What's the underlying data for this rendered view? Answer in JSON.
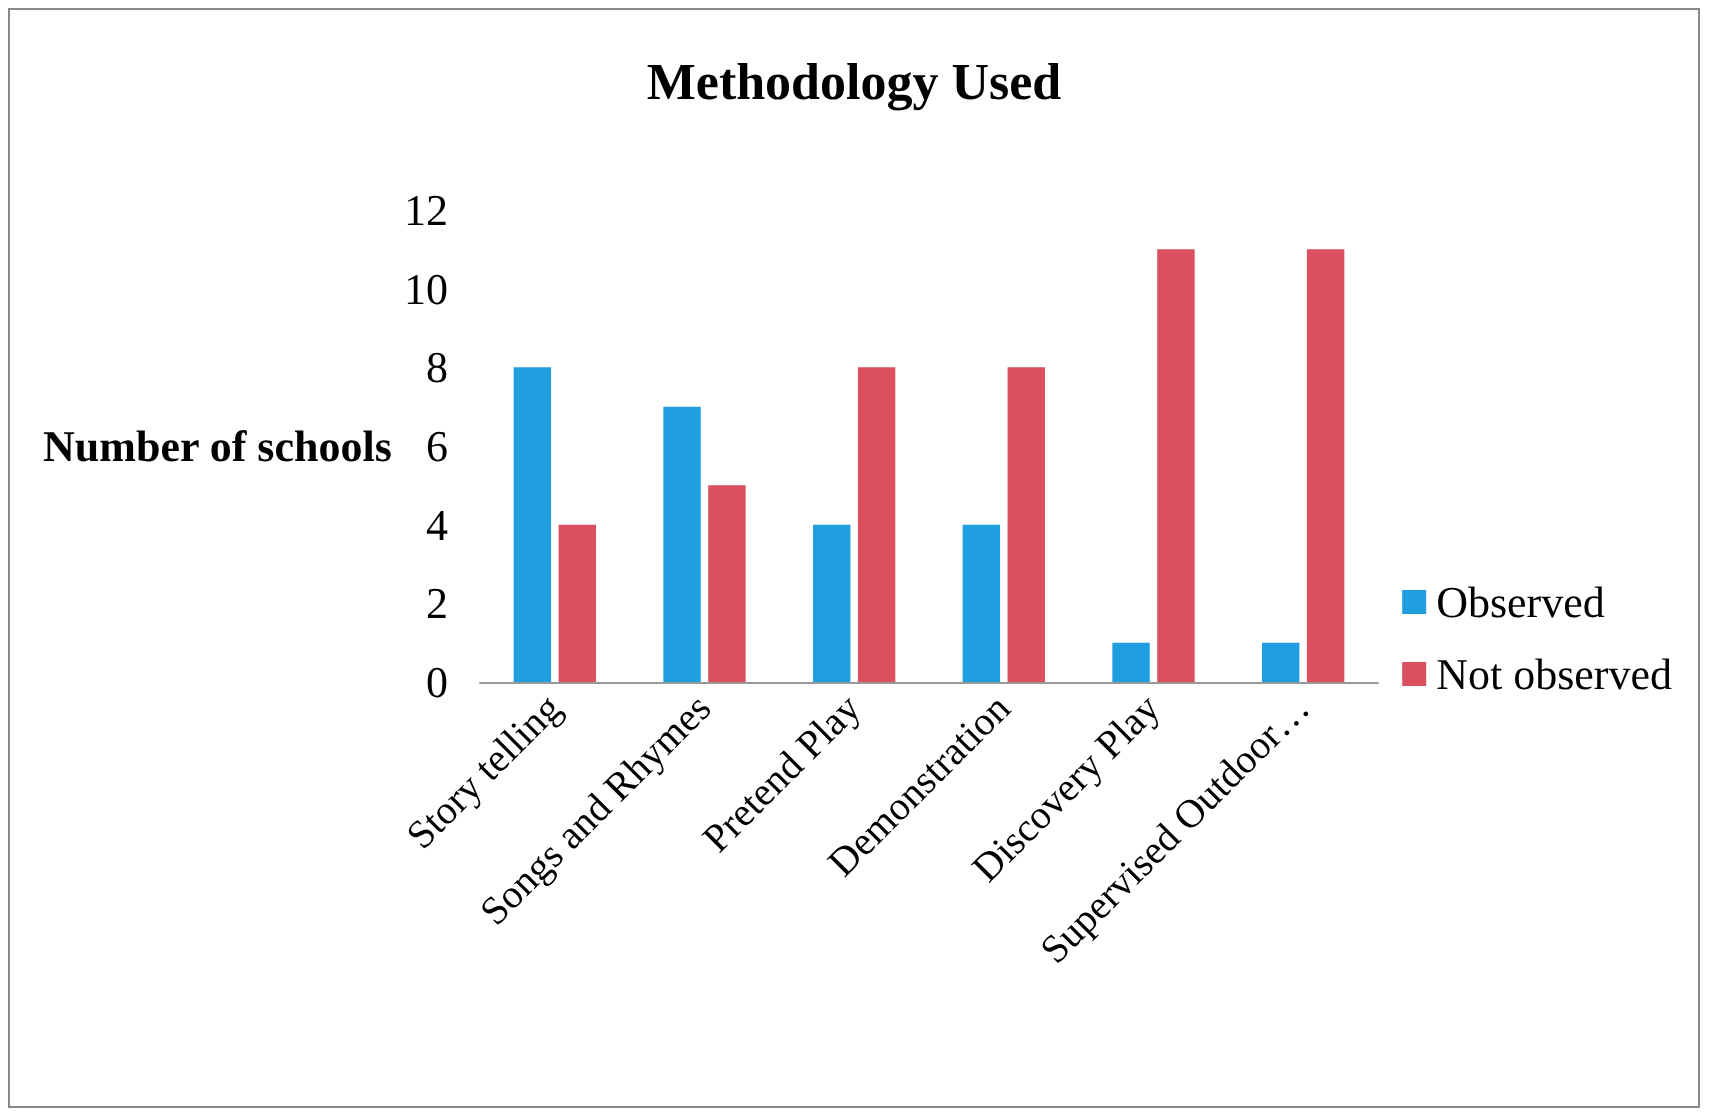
{
  "chart_data": {
    "type": "bar",
    "title": "Methodology Used",
    "ylabel": "Number of schools",
    "categories": [
      "Story telling",
      "Songs and Rhymes",
      "Pretend Play",
      "Demonstration",
      "Discovery Play",
      "Supervised Outdoor…"
    ],
    "series": [
      {
        "name": "Observed",
        "color": "#1f9fe0",
        "values": [
          8,
          7,
          4,
          4,
          1,
          1
        ]
      },
      {
        "name": "Not observed",
        "color": "#dc4f5e",
        "values": [
          4,
          5,
          8,
          8,
          11,
          11
        ]
      }
    ],
    "ylim": [
      0,
      12
    ],
    "yticks": [
      0,
      2,
      4,
      6,
      8,
      10,
      12
    ],
    "grid": false,
    "legend": "right"
  }
}
